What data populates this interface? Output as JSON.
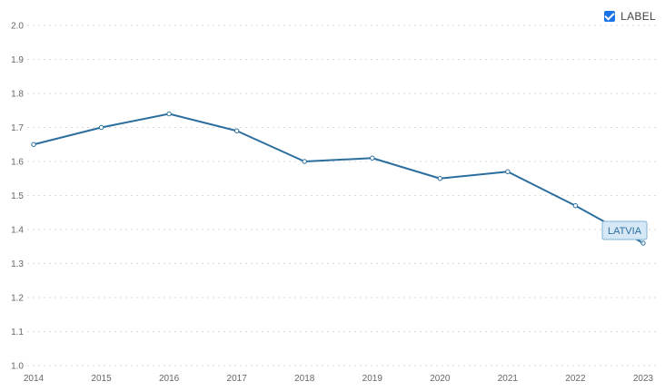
{
  "legend": {
    "label": "LABEL",
    "checked": true
  },
  "chart_data": {
    "type": "line",
    "x": [
      "2014",
      "2015",
      "2016",
      "2017",
      "2018",
      "2019",
      "2020",
      "2021",
      "2022",
      "2023"
    ],
    "series": [
      {
        "name": "LATVIA",
        "color": "#2b6e9e",
        "values": [
          1.65,
          1.7,
          1.74,
          1.69,
          1.6,
          1.61,
          1.55,
          1.57,
          1.47,
          1.36
        ]
      }
    ],
    "ylim": [
      1.0,
      2.0
    ],
    "yticks": [
      "1.0",
      "1.1",
      "1.2",
      "1.3",
      "1.4",
      "1.5",
      "1.6",
      "1.7",
      "1.8",
      "1.9",
      "2.0"
    ],
    "grid": true,
    "title": "",
    "xlabel": "",
    "ylabel": ""
  }
}
